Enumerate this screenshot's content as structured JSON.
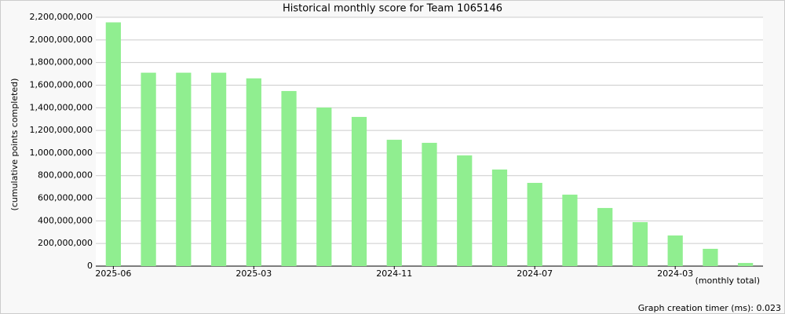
{
  "chart_data": {
    "type": "bar",
    "title": "Historical monthly score for Team 1065146",
    "y_label": "(cumulative points completed)",
    "x_label": "(monthly total)",
    "footer": "Graph creation timer (ms): 0.023",
    "categories": [
      "2025-06",
      null,
      null,
      null,
      "2025-03",
      null,
      null,
      null,
      "2024-11",
      null,
      null,
      null,
      "2024-07",
      null,
      null,
      null,
      "2024-03",
      null,
      null
    ],
    "values": [
      2155000000,
      1710000000,
      1710000000,
      1710000000,
      1660000000,
      1548000000,
      1402000000,
      1319000000,
      1117000000,
      1090000000,
      979000000,
      854000000,
      736000000,
      632000000,
      514000000,
      389000000,
      271000000,
      153000000,
      28000000
    ],
    "color": "#90ee90",
    "ylim": [
      0,
      2200000000
    ],
    "yticks": [
      0,
      {
        "value": 200000000,
        "label": "200,000,000"
      },
      {
        "value": 400000000,
        "label": "400,000,000"
      },
      {
        "value": 600000000,
        "label": "600,000,000"
      },
      {
        "value": 800000000,
        "label": "800,000,000"
      },
      {
        "value": 1000000000,
        "label": "1,000,000,000"
      },
      {
        "value": 1200000000,
        "label": "1,200,000,000"
      },
      {
        "value": 1400000000,
        "label": "1,400,000,000"
      },
      {
        "value": 1600000000,
        "label": "1,600,000,000"
      },
      {
        "value": 1800000000,
        "label": "1,800,000,000"
      },
      {
        "value": 2000000000,
        "label": "2,000,000,000"
      },
      {
        "value": 2200000000,
        "label": "2,200,000,000"
      }
    ],
    "grid": true
  }
}
